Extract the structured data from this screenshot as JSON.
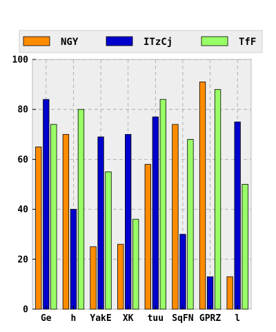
{
  "chart_data": {
    "type": "bar",
    "categories": [
      "Ge",
      "h",
      "YakE",
      "XK",
      "tuu",
      "SqFN",
      "GPRZ",
      "l"
    ],
    "series": [
      {
        "name": "NGY",
        "color": "#ff8c00",
        "values": [
          65,
          70,
          25,
          26,
          58,
          74,
          91,
          13
        ]
      },
      {
        "name": "ITzCj",
        "color": "#0000cd",
        "values": [
          84,
          40,
          69,
          70,
          77,
          30,
          13,
          75
        ]
      },
      {
        "name": "TfF",
        "color": "#99ff66",
        "values": [
          74,
          80,
          55,
          36,
          84,
          68,
          88,
          50
        ]
      }
    ],
    "ylim": [
      0,
      100
    ],
    "yticks": [
      0,
      20,
      40,
      60,
      80,
      100
    ],
    "grid": true,
    "legend_position": "top",
    "xlabel": "",
    "ylabel": ""
  }
}
